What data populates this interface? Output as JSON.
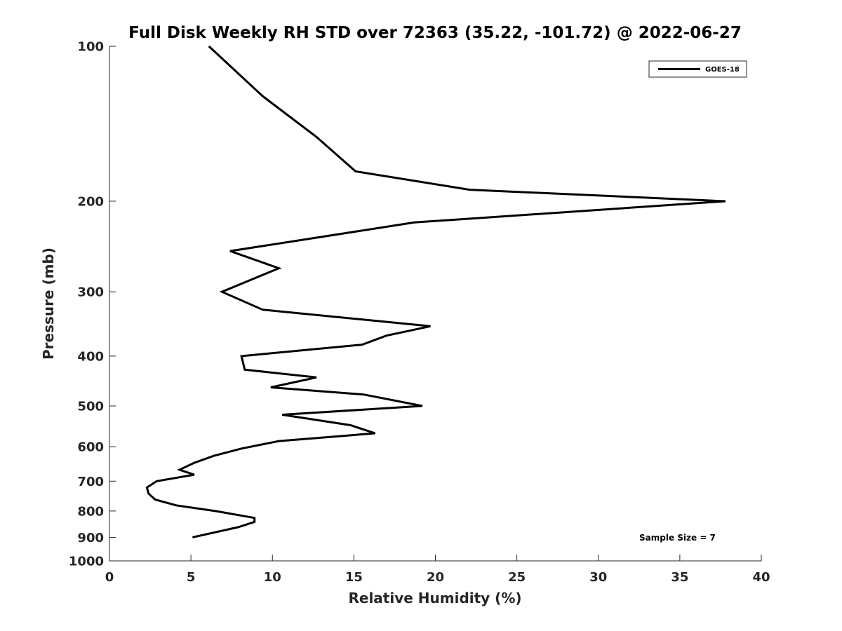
{
  "chart_data": {
    "type": "line",
    "title": "Full Disk Weekly RH STD over 72363 (35.22, -101.72) @ 2022-06-27",
    "xlabel": "Relative Humidity (%)",
    "ylabel": "Pressure (mb)",
    "xlim": [
      0,
      40
    ],
    "ylim": [
      100,
      1000
    ],
    "y_scale": "log",
    "y_reversed": true,
    "grid": false,
    "legend_position": "top-right",
    "x_ticks": [
      0,
      5,
      10,
      15,
      20,
      25,
      30,
      35,
      40
    ],
    "y_ticks": [
      100,
      200,
      300,
      400,
      500,
      600,
      700,
      800,
      900,
      1000
    ],
    "annotation": "Sample Size = 7",
    "series": [
      {
        "name": "GOES-18",
        "color": "#000000",
        "points": [
          {
            "x": 6.1,
            "y": 100
          },
          {
            "x": 9.4,
            "y": 125
          },
          {
            "x": 12.7,
            "y": 150
          },
          {
            "x": 15.1,
            "y": 175
          },
          {
            "x": 22.1,
            "y": 190
          },
          {
            "x": 37.8,
            "y": 200
          },
          {
            "x": 18.7,
            "y": 220
          },
          {
            "x": 7.4,
            "y": 250
          },
          {
            "x": 10.4,
            "y": 270
          },
          {
            "x": 6.9,
            "y": 300
          },
          {
            "x": 9.4,
            "y": 325
          },
          {
            "x": 19.7,
            "y": 350
          },
          {
            "x": 17.0,
            "y": 365
          },
          {
            "x": 15.5,
            "y": 380
          },
          {
            "x": 8.1,
            "y": 400
          },
          {
            "x": 8.3,
            "y": 425
          },
          {
            "x": 12.7,
            "y": 440
          },
          {
            "x": 9.9,
            "y": 460
          },
          {
            "x": 15.6,
            "y": 475
          },
          {
            "x": 19.2,
            "y": 500
          },
          {
            "x": 10.6,
            "y": 520
          },
          {
            "x": 14.8,
            "y": 545
          },
          {
            "x": 16.3,
            "y": 565
          },
          {
            "x": 10.4,
            "y": 585
          },
          {
            "x": 8.1,
            "y": 605
          },
          {
            "x": 6.4,
            "y": 625
          },
          {
            "x": 5.2,
            "y": 645
          },
          {
            "x": 4.3,
            "y": 665
          },
          {
            "x": 5.2,
            "y": 680
          },
          {
            "x": 2.9,
            "y": 700
          },
          {
            "x": 2.3,
            "y": 720
          },
          {
            "x": 2.4,
            "y": 740
          },
          {
            "x": 2.8,
            "y": 760
          },
          {
            "x": 4.1,
            "y": 780
          },
          {
            "x": 6.5,
            "y": 800
          },
          {
            "x": 8.9,
            "y": 825
          },
          {
            "x": 8.9,
            "y": 840
          },
          {
            "x": 7.9,
            "y": 860
          },
          {
            "x": 5.1,
            "y": 900
          }
        ]
      }
    ]
  }
}
